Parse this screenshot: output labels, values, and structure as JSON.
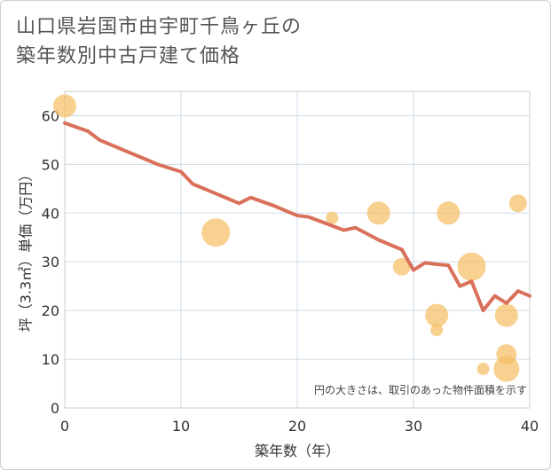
{
  "title_lines": [
    "山口県岩国市由宇町千鳥ヶ丘の",
    "築年数別中古戸建て価格"
  ],
  "chart_data": {
    "type": "scatter",
    "title": "山口県岩国市由宇町千鳥ヶ丘の築年数別中古戸建て価格",
    "xlabel": "築年数（年）",
    "ylabel": "坪（3.3㎡）単価（万円）",
    "xlim": [
      0,
      40
    ],
    "ylim": [
      0,
      65
    ],
    "xticks": [
      0,
      10,
      20,
      30,
      40
    ],
    "yticks": [
      0,
      10,
      20,
      30,
      40,
      50,
      60
    ],
    "grid": true,
    "annotation": "円の大きさは、取引のあった物件面積を示す",
    "colors": {
      "points": "#f5c069",
      "trend": "#d9705a",
      "grid": "#cfdbe8"
    },
    "points": [
      {
        "x": 0,
        "y": 62,
        "size": 3
      },
      {
        "x": 13,
        "y": 36,
        "size": 4
      },
      {
        "x": 23,
        "y": 39,
        "size": 1
      },
      {
        "x": 27,
        "y": 40,
        "size": 3
      },
      {
        "x": 29,
        "y": 29,
        "size": 2
      },
      {
        "x": 32,
        "y": 19,
        "size": 3
      },
      {
        "x": 32,
        "y": 16,
        "size": 1
      },
      {
        "x": 33,
        "y": 40,
        "size": 3
      },
      {
        "x": 35,
        "y": 29,
        "size": 4
      },
      {
        "x": 36,
        "y": 8,
        "size": 1
      },
      {
        "x": 38,
        "y": 19,
        "size": 3
      },
      {
        "x": 38,
        "y": 11,
        "size": 2.5
      },
      {
        "x": 38,
        "y": 8,
        "size": 3.5
      },
      {
        "x": 39,
        "y": 42,
        "size": 2
      }
    ],
    "series": [
      {
        "name": "trend",
        "x": [
          0,
          2,
          3,
          5,
          8,
          10,
          11,
          13,
          15,
          16,
          18,
          20,
          21,
          22,
          24,
          25,
          27,
          29,
          30,
          31,
          32,
          33,
          34,
          35,
          36,
          37,
          38,
          39,
          40
        ],
        "y": [
          58.5,
          56.8,
          55,
          53,
          50,
          48.5,
          46,
          44,
          42,
          43.2,
          41.5,
          39.5,
          39.2,
          38.3,
          36.5,
          37,
          34.5,
          32.5,
          28.3,
          29.8,
          29.5,
          29.3,
          25,
          26,
          20,
          23,
          21.5,
          24,
          23
        ]
      }
    ]
  }
}
